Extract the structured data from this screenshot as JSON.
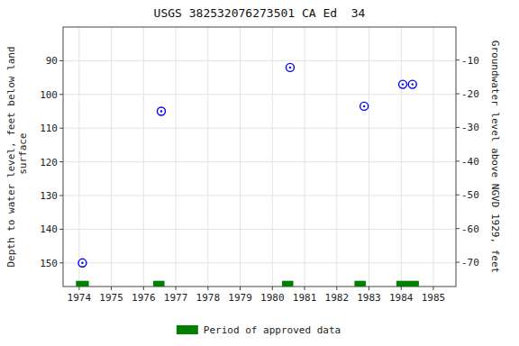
{
  "chart_data": {
    "type": "scatter",
    "title": "USGS 382532076273501 CA Ed  34",
    "y_label": "Depth to water level, feet below land\n surface",
    "y2_label": "Groundwater level above NGVD 1929, feet",
    "xlim": [
      1973.5,
      1985.7
    ],
    "xticks": [
      1974,
      1975,
      1976,
      1977,
      1978,
      1979,
      1980,
      1981,
      1982,
      1983,
      1984,
      1985
    ],
    "ylim": [
      157,
      80
    ],
    "yticks": [
      90,
      100,
      110,
      120,
      130,
      140,
      150
    ],
    "y2lim": [
      -77.2,
      -0.2
    ],
    "y2ticks": [
      -10,
      -20,
      -30,
      -40,
      -50,
      -60,
      -70
    ],
    "grid": true,
    "legend": "bottom",
    "series": [
      {
        "type": "scatter",
        "color": "#0000ff",
        "marker": "circle",
        "x": [
          1974.1,
          1976.55,
          1980.55,
          1982.85,
          1984.05,
          1984.35
        ],
        "values": [
          150.0,
          105.0,
          92.0,
          103.5,
          97.0,
          97.0
        ]
      },
      {
        "name": "Period of approved data",
        "type": "span",
        "color": "#008000",
        "values": [
          [
            1973.9,
            1974.3
          ],
          [
            1976.3,
            1976.65
          ],
          [
            1980.3,
            1980.65
          ],
          [
            1982.55,
            1982.9
          ],
          [
            1983.85,
            1984.55
          ]
        ]
      }
    ]
  }
}
